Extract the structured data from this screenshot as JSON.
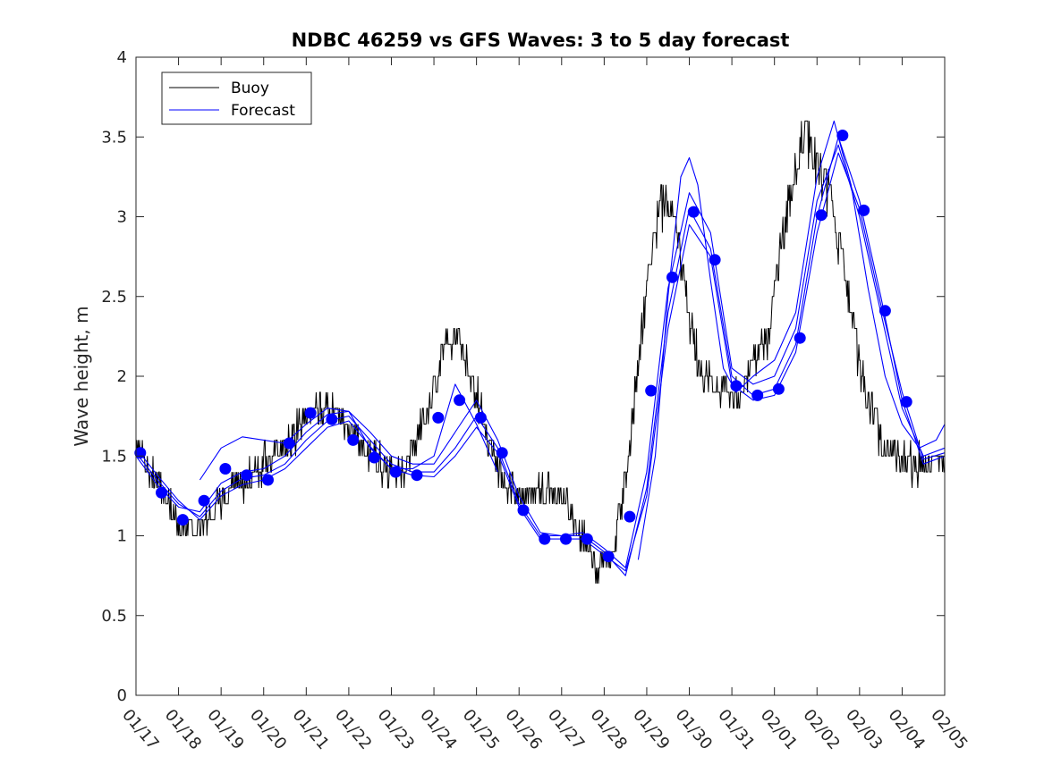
{
  "chart_data": {
    "type": "line",
    "title": "NDBC 46259 vs GFS Waves: 3 to 5 day forecast",
    "xlabel": "",
    "ylabel": "Wave height, m",
    "xlim": [
      0,
      19
    ],
    "ylim": [
      0,
      4
    ],
    "yticks": [
      0,
      0.5,
      1,
      1.5,
      2,
      2.5,
      3,
      3.5,
      4
    ],
    "ytick_labels": [
      "0",
      "0.5",
      "1",
      "1.5",
      "2",
      "2.5",
      "3",
      "3.5",
      "4"
    ],
    "xtick_labels": [
      "01/17",
      "01/18",
      "01/19",
      "01/20",
      "01/21",
      "01/22",
      "01/23",
      "01/24",
      "01/25",
      "01/26",
      "01/27",
      "01/28",
      "01/29",
      "01/30",
      "01/31",
      "02/01",
      "02/02",
      "02/03",
      "02/04",
      "02/05"
    ],
    "legend": {
      "position": "top-left",
      "entries": [
        {
          "label": "Buoy",
          "color": "#000000"
        },
        {
          "label": "Forecast",
          "color": "#0000ff"
        }
      ]
    },
    "buoy_color": "#000000",
    "forecast_color": "#0000ff",
    "marker_color": "#0000ff",
    "buoy_trend": {
      "x": [
        0,
        0.3,
        0.6,
        1.0,
        1.4,
        1.8,
        2.2,
        2.6,
        3.0,
        3.5,
        4.0,
        4.5,
        4.8,
        5.2,
        5.6,
        6.0,
        6.3,
        6.6,
        7.0,
        7.3,
        7.6,
        8.0,
        8.3,
        8.6,
        9.0,
        9.3,
        9.6,
        10.0,
        10.4,
        10.8,
        11.2,
        11.5,
        11.8,
        12.1,
        12.4,
        12.7,
        13.0,
        13.3,
        13.6,
        13.9,
        14.2,
        14.5,
        14.8,
        15.1,
        15.4,
        15.7,
        16.0,
        16.3,
        16.6,
        16.9,
        17.2,
        17.5,
        17.8,
        18.1,
        18.5,
        19.0
      ],
      "y": [
        1.55,
        1.45,
        1.3,
        1.05,
        1.05,
        1.15,
        1.3,
        1.35,
        1.45,
        1.55,
        1.75,
        1.8,
        1.75,
        1.6,
        1.5,
        1.4,
        1.4,
        1.6,
        1.9,
        2.25,
        2.2,
        1.9,
        1.6,
        1.35,
        1.25,
        1.25,
        1.3,
        1.25,
        1.05,
        0.8,
        0.85,
        1.35,
        2.1,
        2.8,
        3.1,
        2.9,
        2.4,
        1.95,
        1.95,
        1.9,
        1.9,
        2.05,
        2.2,
        2.7,
        3.2,
        3.55,
        3.3,
        3.1,
        2.7,
        2.2,
        1.85,
        1.6,
        1.5,
        1.45,
        1.45,
        1.5
      ]
    },
    "buoy_noise_amplitude": 0.12,
    "forecast_runs": [
      {
        "x": [
          0,
          0.5,
          1.0,
          1.5,
          2.0,
          2.5,
          3.0,
          3.5,
          4.0,
          4.5,
          5.0,
          5.5,
          6.0,
          6.5,
          7.0,
          7.5,
          8.0,
          8.5,
          9.0,
          9.5,
          10.0,
          10.5,
          11.0,
          11.5,
          12.0,
          12.5,
          13.0,
          13.5,
          14.0,
          14.5,
          15.0,
          15.5,
          16.0,
          16.5,
          17.0,
          17.5,
          18.0,
          18.5,
          19.0
        ],
        "y": [
          1.52,
          1.35,
          1.2,
          1.12,
          1.28,
          1.36,
          1.38,
          1.45,
          1.6,
          1.72,
          1.75,
          1.6,
          1.45,
          1.4,
          1.4,
          1.55,
          1.75,
          1.55,
          1.2,
          1.0,
          1.0,
          1.0,
          0.9,
          0.75,
          1.3,
          2.4,
          3.05,
          2.8,
          2.0,
          1.88,
          1.92,
          2.2,
          3.0,
          3.5,
          3.1,
          2.5,
          1.85,
          1.45,
          1.5
        ]
      },
      {
        "x": [
          0,
          0.5,
          1.0,
          1.5,
          2.0,
          2.5,
          3.0,
          3.5,
          4.0,
          4.5,
          5.0,
          5.5,
          6.0,
          6.5,
          7.0,
          7.5,
          8.0,
          8.5,
          9.0,
          9.5,
          10.0,
          10.5,
          11.0,
          11.5,
          12.0,
          12.5,
          13.0,
          13.5,
          14.0,
          14.5,
          15.0,
          15.5,
          16.0,
          16.5,
          17.0,
          17.5,
          18.0,
          18.5,
          19.0
        ],
        "y": [
          1.5,
          1.32,
          1.18,
          1.15,
          1.33,
          1.4,
          1.42,
          1.5,
          1.65,
          1.76,
          1.78,
          1.65,
          1.5,
          1.45,
          1.45,
          1.65,
          1.85,
          1.6,
          1.25,
          1.02,
          1.0,
          1.02,
          0.92,
          0.8,
          1.4,
          2.55,
          3.15,
          2.9,
          2.05,
          1.95,
          2.0,
          2.3,
          3.1,
          3.45,
          3.0,
          2.4,
          1.8,
          1.5,
          1.55
        ]
      },
      {
        "x": [
          0,
          0.5,
          1.0,
          1.5,
          2.0,
          2.5,
          3.0,
          3.5,
          4.0,
          4.5,
          5.0,
          5.5,
          6.0,
          6.5,
          7.0,
          7.5,
          8.0,
          8.5,
          9.0,
          9.5,
          10.0,
          10.5,
          11.0,
          11.5,
          12.0,
          12.5,
          13.0,
          13.5,
          14.0,
          14.5,
          15.0,
          15.5,
          16.0,
          16.5,
          17.0,
          17.5,
          18.0,
          18.5,
          19.0
        ],
        "y": [
          1.55,
          1.38,
          1.22,
          1.1,
          1.25,
          1.32,
          1.35,
          1.42,
          1.55,
          1.68,
          1.72,
          1.56,
          1.42,
          1.38,
          1.37,
          1.5,
          1.68,
          1.52,
          1.18,
          0.98,
          0.98,
          0.98,
          0.88,
          0.78,
          1.25,
          2.3,
          2.95,
          2.75,
          1.95,
          1.85,
          1.88,
          2.15,
          2.9,
          3.4,
          3.05,
          2.45,
          1.9,
          1.48,
          1.52
        ]
      },
      {
        "x": [
          1.5,
          2.0,
          2.5,
          3.0,
          3.5,
          4.0,
          4.5,
          5.0,
          5.5,
          6.0,
          6.5,
          7.0,
          7.5,
          8.0,
          8.5
        ],
        "y": [
          1.35,
          1.55,
          1.62,
          1.6,
          1.58,
          1.7,
          1.8,
          1.78,
          1.55,
          1.42,
          1.42,
          1.5,
          1.95,
          1.7,
          1.4
        ]
      },
      {
        "x": [
          11.8,
          12.2,
          12.5,
          12.8,
          13.0,
          13.2,
          13.5,
          13.8,
          14.1,
          14.5,
          15.0,
          15.5,
          16.0,
          16.4,
          16.8,
          17.2,
          17.6,
          18.0,
          18.4,
          18.8,
          19.0
        ],
        "y": [
          0.85,
          1.5,
          2.5,
          3.25,
          3.37,
          3.2,
          2.6,
          2.05,
          1.9,
          2.0,
          2.1,
          2.4,
          3.25,
          3.6,
          3.2,
          2.55,
          2.0,
          1.7,
          1.55,
          1.6,
          1.7
        ]
      }
    ],
    "daily_markers": {
      "x": [
        0.1,
        0.6,
        1.1,
        1.6,
        2.1,
        2.6,
        3.1,
        3.6,
        4.1,
        4.6,
        5.1,
        5.6,
        6.1,
        6.6,
        7.1,
        7.6,
        8.1,
        8.6,
        9.1,
        9.6,
        10.1,
        10.6,
        11.1,
        11.6,
        12.1,
        12.6,
        13.1,
        13.6,
        14.1,
        14.6,
        15.1,
        15.6,
        16.1,
        16.6,
        17.1,
        17.6,
        18.1
      ],
      "y": [
        1.52,
        1.27,
        1.1,
        1.22,
        1.42,
        1.38,
        1.35,
        1.58,
        1.77,
        1.73,
        1.6,
        1.49,
        1.4,
        1.38,
        1.74,
        1.85,
        1.74,
        1.52,
        1.16,
        0.98,
        0.98,
        0.98,
        0.87,
        1.12,
        1.91,
        2.62,
        3.03,
        2.73,
        1.94,
        1.88,
        1.92,
        2.24,
        3.01,
        3.51,
        3.04,
        2.41,
        1.84
      ]
    }
  }
}
